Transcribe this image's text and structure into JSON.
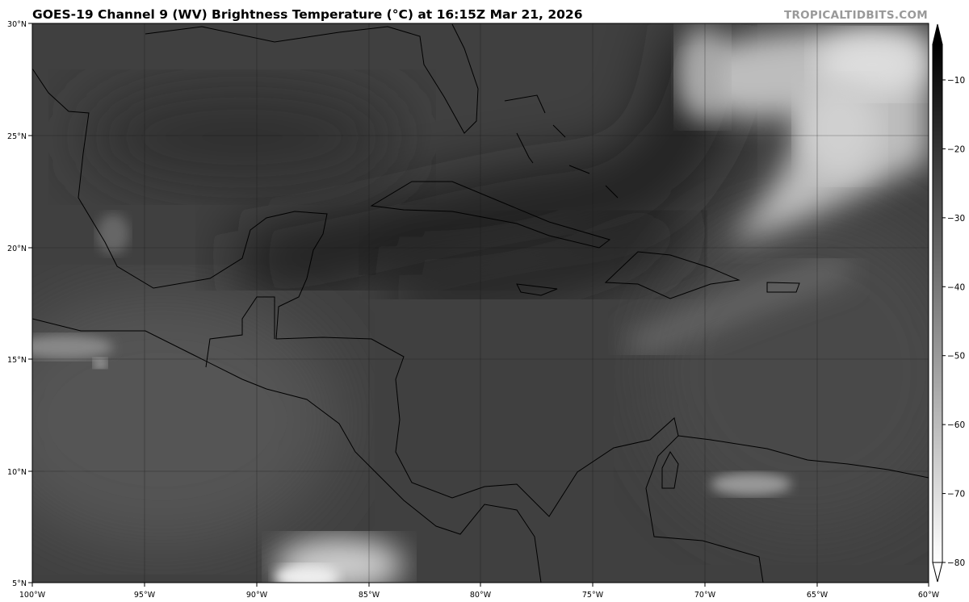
{
  "header": {
    "title": "GOES-19 Channel 9 (WV) Brightness Temperature (°C) at 16:15Z Mar 21, 2026",
    "watermark": "TROPICALTIDBITS.COM"
  },
  "map": {
    "extent": {
      "lon": [
        -100,
        -60
      ],
      "lat": [
        5,
        30
      ]
    },
    "lon_ticks": [
      {
        "value": -100,
        "label": "100°W"
      },
      {
        "value": -95,
        "label": "95°W"
      },
      {
        "value": -90,
        "label": "90°W"
      },
      {
        "value": -85,
        "label": "85°W"
      },
      {
        "value": -80,
        "label": "80°W"
      },
      {
        "value": -75,
        "label": "75°W"
      },
      {
        "value": -70,
        "label": "70°W"
      },
      {
        "value": -65,
        "label": "65°W"
      },
      {
        "value": -60,
        "label": "60°W"
      }
    ],
    "lat_ticks": [
      {
        "value": 5,
        "label": "5°N"
      },
      {
        "value": 10,
        "label": "10°N"
      },
      {
        "value": 15,
        "label": "15°N"
      },
      {
        "value": 20,
        "label": "20°N"
      },
      {
        "value": 25,
        "label": "25°N"
      },
      {
        "value": 30,
        "label": "30°N"
      }
    ],
    "gridlines": true
  },
  "colorbar": {
    "range": [
      -80,
      -5
    ],
    "colormap": "grayscale reversed (warm = black, cold = white)",
    "ticks": [
      {
        "value": -10,
        "label": "−10"
      },
      {
        "value": -20,
        "label": "−20"
      },
      {
        "value": -30,
        "label": "−30"
      },
      {
        "value": -40,
        "label": "−40"
      },
      {
        "value": -50,
        "label": "−50"
      },
      {
        "value": -60,
        "label": "−60"
      },
      {
        "value": -70,
        "label": "−70"
      },
      {
        "value": -80,
        "label": "−80"
      }
    ],
    "extend": "both"
  }
}
